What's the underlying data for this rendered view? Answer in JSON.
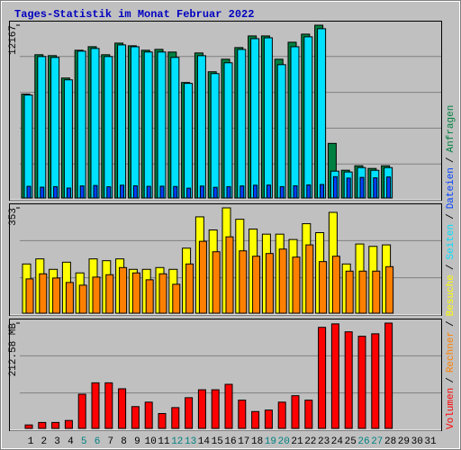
{
  "chart_data": {
    "type": "bar",
    "title": "Tages-Statistik im Monat Februar 2022",
    "categories": [
      "1",
      "2",
      "3",
      "4",
      "5",
      "6",
      "7",
      "8",
      "9",
      "10",
      "11",
      "12",
      "13",
      "14",
      "15",
      "16",
      "17",
      "18",
      "19",
      "20",
      "21",
      "22",
      "23",
      "24",
      "25",
      "26",
      "27",
      "28",
      "29",
      "30",
      "31"
    ],
    "highlight_categories": [
      "5",
      "6",
      "12",
      "13",
      "19",
      "20",
      "26",
      "27"
    ],
    "highlight_color": "#008080",
    "legend_separator": "/",
    "panels": [
      {
        "ylim": [
          0,
          12167
        ],
        "yticks": [
          12167
        ],
        "series": [
          {
            "name": "Anfragen",
            "color": "#008040",
            "values": [
              7313,
              10087,
              10024,
              8447,
              10402,
              10654,
              10087,
              10906,
              10717,
              10402,
              10465,
              10276,
              8132,
              10213,
              8889,
              9771,
              10591,
              11411,
              11411,
              9771,
              10969,
              11537,
              12167,
              3845,
              1954,
              2269,
              2080,
              2269,
              null,
              null,
              null
            ]
          },
          {
            "name": "Dateien",
            "color": "#0040ff",
            "values": [
              820,
              760,
              800,
              700,
              850,
              880,
              790,
              900,
              860,
              820,
              830,
              810,
              690,
              840,
              750,
              800,
              850,
              900,
              910,
              800,
              860,
              920,
              950,
              1500,
              1400,
              1450,
              1420,
              1480,
              null,
              null,
              null
            ]
          },
          {
            "name": "Seiten",
            "color": "#00e0ff",
            "values": [
              7250,
              9960,
              9900,
              8320,
              10340,
              10530,
              9960,
              10780,
              10650,
              10280,
              10280,
              9900,
              8070,
              10020,
              8760,
              9520,
              10460,
              11220,
              11280,
              9390,
              10650,
              11350,
              11920,
              1890,
              1830,
              2140,
              1950,
              2140,
              null,
              null,
              null
            ]
          }
        ]
      },
      {
        "ylim": [
          0,
          353
        ],
        "yticks": [
          353
        ],
        "series": [
          {
            "name": "Besuche",
            "color": "#ffff00",
            "values": [
              165,
              182,
              147,
              171,
              135,
              182,
              176,
              182,
              147,
              147,
              153,
              147,
              218,
              323,
              279,
              353,
              315,
              282,
              265,
              265,
              247,
              300,
              270,
              338,
              165,
              232,
              224,
              229,
              null,
              null,
              null
            ]
          },
          {
            "name": "Rechner",
            "color": "#ff8000",
            "values": [
              115,
              132,
              118,
              103,
              94,
              121,
              129,
              153,
              135,
              112,
              132,
              97,
              165,
              241,
              206,
              256,
              209,
              191,
              200,
              215,
              188,
              229,
              173,
              191,
              141,
              141,
              141,
              156,
              null,
              null,
              null
            ]
          }
        ]
      },
      {
        "ylim": [
          0,
          212.58
        ],
        "yticks": [
          {
            "value": 212.58,
            "label": "212.58 MB"
          }
        ],
        "series": [
          {
            "name": "Volumen",
            "color": "#ff0000",
            "values": [
              7,
              12,
              12,
              16,
              69,
              92,
              92,
              80,
              44,
              53,
              30,
              42,
              62,
              78,
              78,
              89,
              57,
              34,
              37,
              53,
              66,
              57,
              204,
              211,
              195,
              186,
              191,
              212.58,
              null,
              null,
              null
            ]
          }
        ]
      }
    ]
  }
}
